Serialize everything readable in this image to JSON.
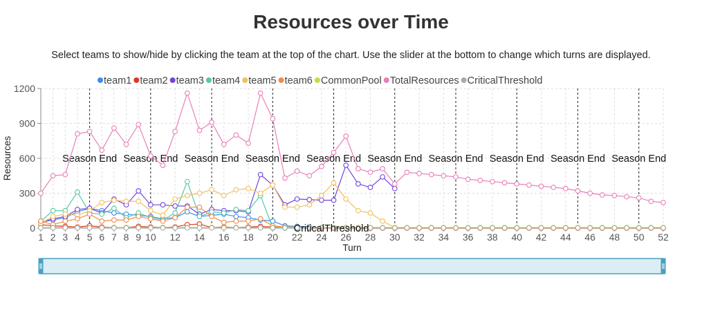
{
  "page": {
    "title": "Resources over Time",
    "subtitle": "Select teams to show/hide by clicking the team at the top of the chart. Use the slider at the bottom to change which turns are displayed."
  },
  "chart_data": {
    "type": "line",
    "xlabel": "Turn",
    "ylabel": "Resources",
    "xlim": [
      1,
      52
    ],
    "ylim": [
      0,
      1200
    ],
    "yticks": [
      0,
      300,
      600,
      900,
      1200
    ],
    "xticks": [
      1,
      2,
      3,
      4,
      5,
      6,
      7,
      8,
      9,
      10,
      12,
      14,
      16,
      18,
      20,
      22,
      24,
      26,
      28,
      30,
      32,
      34,
      36,
      38,
      40,
      42,
      44,
      46,
      48,
      50,
      52
    ],
    "grid": true,
    "legend_position": "top",
    "x": [
      1,
      2,
      3,
      4,
      5,
      6,
      7,
      8,
      9,
      10,
      11,
      12,
      13,
      14,
      15,
      16,
      17,
      18,
      19,
      20,
      21,
      22,
      23,
      24,
      25,
      26,
      27,
      28,
      29,
      30,
      31,
      32,
      33,
      34,
      35,
      36,
      37,
      38,
      39,
      40,
      41,
      42,
      43,
      44,
      45,
      46,
      47,
      48,
      49,
      50,
      51,
      52
    ],
    "season_ends": [
      5,
      10,
      15,
      20,
      25,
      30,
      35,
      40,
      45,
      50
    ],
    "season_end_label": "Season End",
    "critical_threshold_label": "CriticalThreshold",
    "series": [
      {
        "name": "team1",
        "color": "#3b8ef0",
        "values": [
          50,
          70,
          90,
          140,
          170,
          150,
          130,
          120,
          110,
          100,
          80,
          90,
          140,
          100,
          110,
          120,
          100,
          90,
          70,
          60,
          20,
          15,
          10,
          5,
          5,
          0,
          0,
          0,
          0,
          0,
          0,
          0,
          0,
          0,
          0,
          0,
          0,
          0,
          0,
          0,
          0,
          0,
          0,
          0,
          0,
          0,
          0,
          0,
          0,
          0,
          0,
          0
        ]
      },
      {
        "name": "team2",
        "color": "#e0352b",
        "values": [
          30,
          20,
          15,
          10,
          20,
          10,
          5,
          5,
          15,
          10,
          5,
          10,
          30,
          35,
          5,
          10,
          5,
          10,
          15,
          10,
          5,
          5,
          0,
          0,
          0,
          0,
          0,
          0,
          0,
          0,
          0,
          0,
          0,
          0,
          0,
          0,
          0,
          0,
          0,
          0,
          0,
          0,
          0,
          0,
          0,
          0,
          0,
          0,
          0,
          0,
          0,
          0
        ]
      },
      {
        "name": "team3",
        "color": "#7243e0",
        "values": [
          50,
          80,
          100,
          160,
          170,
          130,
          250,
          200,
          320,
          200,
          200,
          190,
          190,
          120,
          160,
          150,
          150,
          140,
          460,
          370,
          200,
          250,
          245,
          240,
          240,
          540,
          380,
          350,
          440,
          340,
          null,
          null,
          null,
          null,
          null,
          null,
          null,
          null,
          null,
          null,
          null,
          null,
          null,
          null,
          null,
          null,
          null,
          null,
          null,
          null,
          null,
          null
        ]
      },
      {
        "name": "team4",
        "color": "#5ac7a6",
        "values": [
          60,
          150,
          150,
          310,
          130,
          120,
          170,
          90,
          130,
          90,
          70,
          130,
          400,
          100,
          140,
          130,
          160,
          150,
          280,
          0,
          0,
          0,
          0,
          0,
          0,
          0,
          0,
          0,
          0,
          0,
          0,
          0,
          0,
          0,
          0,
          0,
          0,
          0,
          0,
          0,
          0,
          0,
          0,
          0,
          0,
          0,
          0,
          0,
          0,
          0,
          0,
          0
        ]
      },
      {
        "name": "team5",
        "color": "#f0c060",
        "values": [
          40,
          100,
          120,
          110,
          150,
          220,
          240,
          230,
          230,
          150,
          110,
          250,
          280,
          300,
          330,
          280,
          330,
          340,
          300,
          370,
          180,
          180,
          200,
          280,
          390,
          250,
          150,
          130,
          60,
          5,
          0,
          0,
          0,
          0,
          0,
          0,
          0,
          0,
          0,
          0,
          0,
          0,
          0,
          0,
          0,
          0,
          0,
          0,
          0,
          0,
          0,
          0
        ]
      },
      {
        "name": "team6",
        "color": "#f08a4e",
        "values": [
          60,
          30,
          60,
          80,
          120,
          60,
          70,
          70,
          100,
          80,
          60,
          90,
          180,
          180,
          100,
          50,
          60,
          60,
          80,
          20,
          10,
          10,
          0,
          0,
          0,
          0,
          0,
          0,
          0,
          0,
          0,
          0,
          0,
          0,
          0,
          0,
          0,
          0,
          0,
          0,
          0,
          0,
          0,
          0,
          0,
          0,
          0,
          0,
          0,
          0,
          0,
          0
        ]
      },
      {
        "name": "CommonPool",
        "color": "#c1dc4a",
        "values": [
          5,
          5,
          5,
          5,
          5,
          5,
          5,
          5,
          5,
          5,
          5,
          5,
          5,
          5,
          5,
          5,
          5,
          5,
          5,
          5,
          5,
          5,
          5,
          5,
          5,
          5,
          5,
          5,
          5,
          5,
          5,
          5,
          5,
          5,
          5,
          5,
          5,
          5,
          5,
          5,
          5,
          5,
          5,
          5,
          5,
          5,
          5,
          5,
          5,
          5,
          5,
          5
        ]
      },
      {
        "name": "TotalResources",
        "color": "#e87fb8",
        "values": [
          300,
          450,
          460,
          810,
          830,
          670,
          860,
          720,
          890,
          620,
          540,
          830,
          1160,
          840,
          910,
          720,
          800,
          730,
          1160,
          940,
          430,
          490,
          450,
          530,
          650,
          790,
          510,
          480,
          510,
          380,
          480,
          470,
          460,
          450,
          440,
          420,
          410,
          400,
          390,
          380,
          370,
          360,
          350,
          340,
          320,
          300,
          285,
          280,
          270,
          260,
          230,
          220
        ]
      },
      {
        "name": "CriticalThreshold",
        "color": "#aaaaaa",
        "values": [
          2,
          2,
          2,
          2,
          2,
          2,
          2,
          2,
          2,
          2,
          2,
          2,
          2,
          2,
          2,
          2,
          2,
          2,
          2,
          2,
          2,
          2,
          2,
          2,
          2,
          2,
          2,
          2,
          2,
          2,
          2,
          2,
          2,
          2,
          2,
          2,
          2,
          2,
          2,
          2,
          2,
          2,
          2,
          2,
          2,
          2,
          2,
          2,
          2,
          2,
          2,
          2
        ]
      }
    ]
  },
  "slider": {
    "range": [
      1,
      52
    ],
    "fill": "#dcedf5",
    "border": "#4aa0c0"
  }
}
